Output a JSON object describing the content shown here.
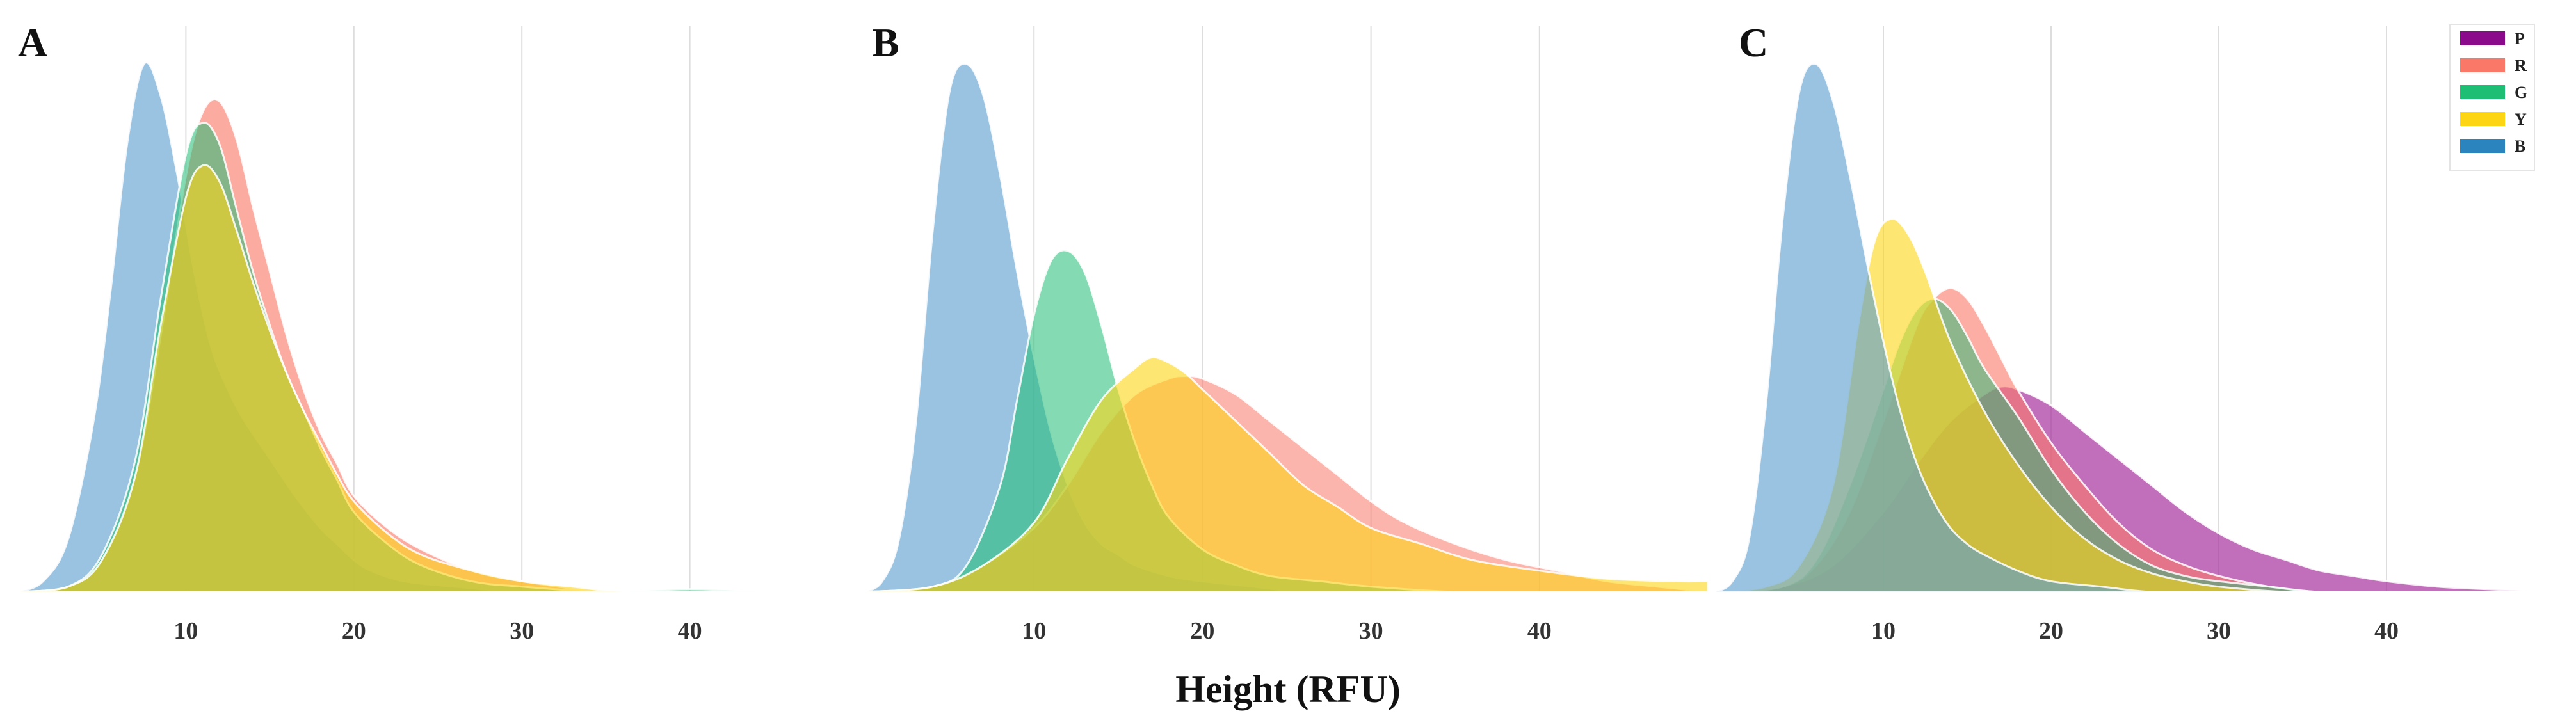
{
  "chart_data": {
    "type": "area",
    "xlabel": "Height (RFU)",
    "ylabel": "",
    "xlim": [
      0,
      50
    ],
    "xticks": [
      10,
      20,
      30,
      40
    ],
    "grid": true,
    "legend": {
      "placement": "top-right",
      "entries": [
        {
          "name": "P",
          "color": "#8B0A8B"
        },
        {
          "name": "R",
          "color": "#FA7867"
        },
        {
          "name": "G",
          "color": "#1FBE75"
        },
        {
          "name": "Y",
          "color": "#FDD515"
        },
        {
          "name": "B",
          "color": "#2C84BE"
        }
      ]
    },
    "panels": [
      {
        "label": "A",
        "series": [
          {
            "name": "B",
            "color": "#5A9ECD",
            "opacity": 0.62,
            "x": [
              0,
              1.5,
              3,
              4.5,
              5.5,
              6.5,
              7.5,
              8.5,
              9.5,
              10.5,
              11.5,
              12.5,
              13.5,
              15,
              16.5,
              18,
              19,
              20,
              21,
              23,
              26,
              30,
              35,
              40,
              45,
              50
            ],
            "y": [
              0.0,
              0.02,
              0.1,
              0.32,
              0.56,
              0.84,
              0.99,
              0.93,
              0.78,
              0.6,
              0.46,
              0.38,
              0.32,
              0.25,
              0.18,
              0.12,
              0.09,
              0.06,
              0.04,
              0.02,
              0.01,
              0.0,
              0.0,
              0.0,
              0.0,
              0.0
            ]
          },
          {
            "name": "R",
            "color": "#FA7867",
            "opacity": 0.62,
            "x": [
              0,
              3,
              5,
              7,
              8.5,
              10,
              11,
              12,
              13,
              14,
              15,
              16,
              17,
              18,
              19,
              20,
              22,
              24,
              27,
              30,
              35,
              40,
              45,
              50
            ],
            "y": [
              0.0,
              0.01,
              0.06,
              0.22,
              0.48,
              0.78,
              0.9,
              0.92,
              0.85,
              0.72,
              0.6,
              0.48,
              0.38,
              0.3,
              0.24,
              0.18,
              0.12,
              0.08,
              0.04,
              0.02,
              0.0,
              0.0,
              0.0,
              0.0
            ]
          },
          {
            "name": "G",
            "color": "#1FBE75",
            "opacity": 0.55,
            "x": [
              0,
              3,
              5,
              7,
              8.5,
              10,
              11,
              12,
              13,
              14,
              15,
              16,
              17,
              18,
              19,
              20,
              22,
              24,
              27,
              30,
              35,
              40,
              45,
              50
            ],
            "y": [
              0.0,
              0.01,
              0.07,
              0.25,
              0.55,
              0.82,
              0.88,
              0.84,
              0.72,
              0.6,
              0.5,
              0.41,
              0.34,
              0.27,
              0.21,
              0.15,
              0.09,
              0.05,
              0.02,
              0.01,
              0.0,
              0.005,
              0.0,
              0.0
            ]
          },
          {
            "name": "Y",
            "color": "#FDD515",
            "opacity": 0.6,
            "x": [
              0,
              3,
              5,
              7,
              8.5,
              10,
              11,
              12,
              13,
              14,
              15,
              16,
              17,
              18,
              19,
              20,
              22,
              24,
              27,
              30,
              33,
              36,
              40,
              45,
              50
            ],
            "y": [
              0.0,
              0.01,
              0.06,
              0.22,
              0.5,
              0.74,
              0.8,
              0.77,
              0.68,
              0.58,
              0.49,
              0.41,
              0.34,
              0.28,
              0.22,
              0.17,
              0.11,
              0.07,
              0.04,
              0.02,
              0.01,
              0.0,
              0.0,
              0.0,
              0.0
            ]
          }
        ]
      },
      {
        "label": "B",
        "series": [
          {
            "name": "B",
            "color": "#5A9ECD",
            "opacity": 0.62,
            "x": [
              0,
              1,
              2,
              3,
              4,
              5,
              6,
              7,
              8,
              9,
              10,
              11,
              12,
              13,
              14,
              15,
              16,
              18,
              20,
              23,
              26,
              30,
              35,
              40,
              45,
              50
            ],
            "y": [
              0.0,
              0.02,
              0.1,
              0.32,
              0.68,
              0.94,
              0.99,
              0.93,
              0.78,
              0.6,
              0.44,
              0.3,
              0.2,
              0.13,
              0.09,
              0.07,
              0.05,
              0.03,
              0.02,
              0.01,
              0.0,
              0.0,
              0.0,
              0.0,
              0.0,
              0.0
            ]
          },
          {
            "name": "R",
            "color": "#FA7867",
            "opacity": 0.55,
            "x": [
              0,
              4,
              7,
              10,
              12,
              14,
              16,
              18,
              19,
              20,
              22,
              24,
              26,
              28,
              30,
              32,
              35,
              38,
              41,
              44,
              47,
              50
            ],
            "y": [
              0.0,
              0.01,
              0.05,
              0.12,
              0.2,
              0.3,
              0.37,
              0.4,
              0.405,
              0.4,
              0.37,
              0.32,
              0.27,
              0.22,
              0.17,
              0.13,
              0.09,
              0.06,
              0.04,
              0.02,
              0.01,
              0.0
            ]
          },
          {
            "name": "G",
            "color": "#1FBE75",
            "opacity": 0.55,
            "x": [
              0,
              4,
              6,
              8,
              9,
              10,
              11,
              12,
              13,
              14,
              15,
              16,
              17,
              18,
              20,
              22,
              24,
              27,
              30,
              35,
              40,
              45,
              50
            ],
            "y": [
              0.0,
              0.01,
              0.05,
              0.2,
              0.36,
              0.52,
              0.62,
              0.64,
              0.6,
              0.5,
              0.38,
              0.28,
              0.2,
              0.14,
              0.08,
              0.05,
              0.03,
              0.02,
              0.01,
              0.0,
              0.0,
              0.0,
              0.0
            ]
          },
          {
            "name": "Y",
            "color": "#FDD515",
            "opacity": 0.6,
            "x": [
              0,
              4,
              7,
              10,
              12,
              14,
              16,
              17,
              18,
              19,
              20,
              22,
              24,
              26,
              28,
              30,
              33,
              36,
              40,
              44,
              48,
              50
            ],
            "y": [
              0.0,
              0.01,
              0.05,
              0.13,
              0.25,
              0.36,
              0.42,
              0.44,
              0.43,
              0.41,
              0.38,
              0.32,
              0.26,
              0.2,
              0.16,
              0.12,
              0.09,
              0.06,
              0.04,
              0.025,
              0.02,
              0.02
            ]
          }
        ]
      },
      {
        "label": "C",
        "series": [
          {
            "name": "P",
            "color": "#A8329E",
            "opacity": 0.7,
            "x": [
              0,
              4,
              7,
              10,
              12,
              14,
              16,
              17,
              18,
              20,
              22,
              24,
              26,
              28,
              30,
              32,
              34,
              36,
              38,
              40,
              43,
              46,
              50
            ],
            "y": [
              0.0,
              0.01,
              0.05,
              0.15,
              0.24,
              0.32,
              0.37,
              0.385,
              0.38,
              0.35,
              0.3,
              0.25,
              0.2,
              0.15,
              0.11,
              0.08,
              0.06,
              0.04,
              0.03,
              0.02,
              0.01,
              0.005,
              0.0
            ]
          },
          {
            "name": "R",
            "color": "#FA7867",
            "opacity": 0.6,
            "x": [
              0,
              4,
              6,
              8,
              10,
              12,
              13,
              14,
              15,
              16,
              17,
              18,
              20,
              22,
              24,
              26,
              28,
              30,
              33,
              36,
              40,
              45,
              50
            ],
            "y": [
              0.0,
              0.01,
              0.05,
              0.15,
              0.32,
              0.5,
              0.55,
              0.57,
              0.55,
              0.5,
              0.44,
              0.38,
              0.28,
              0.2,
              0.13,
              0.08,
              0.05,
              0.03,
              0.01,
              0.0,
              0.0,
              0.0,
              0.0
            ]
          },
          {
            "name": "G",
            "color": "#1FBE75",
            "opacity": 0.5,
            "x": [
              0,
              4,
              6,
              8,
              10,
              11,
              12,
              13,
              14,
              15,
              16,
              18,
              20,
              22,
              24,
              26,
              28,
              30,
              33,
              36,
              40,
              45,
              50
            ],
            "y": [
              0.0,
              0.01,
              0.06,
              0.2,
              0.38,
              0.47,
              0.53,
              0.55,
              0.53,
              0.48,
              0.42,
              0.33,
              0.23,
              0.15,
              0.09,
              0.05,
              0.03,
              0.02,
              0.01,
              0.0,
              0.0,
              0.0,
              0.0
            ]
          },
          {
            "name": "Y",
            "color": "#FDD515",
            "opacity": 0.6,
            "x": [
              0,
              3,
              5,
              7,
              8.5,
              9.5,
              10.5,
              11.5,
              12.5,
              14,
              16,
              18,
              20,
              22,
              24,
              26,
              28,
              30,
              34,
              38,
              42,
              46,
              50
            ],
            "y": [
              0.0,
              0.01,
              0.05,
              0.2,
              0.5,
              0.66,
              0.7,
              0.67,
              0.6,
              0.47,
              0.34,
              0.24,
              0.16,
              0.1,
              0.06,
              0.035,
              0.02,
              0.01,
              0.0,
              0.0,
              0.0,
              0.0,
              0.0
            ]
          },
          {
            "name": "B",
            "color": "#5A9ECD",
            "opacity": 0.62,
            "x": [
              0,
              1,
              2,
              3,
              4,
              5,
              6,
              7,
              8,
              9,
              10,
              11,
              12,
              13,
              14,
              15,
              16,
              18,
              20,
              23,
              26,
              30,
              35,
              40,
              45,
              50
            ],
            "y": [
              0.0,
              0.02,
              0.1,
              0.35,
              0.7,
              0.94,
              0.99,
              0.92,
              0.78,
              0.62,
              0.47,
              0.34,
              0.24,
              0.17,
              0.12,
              0.09,
              0.07,
              0.04,
              0.02,
              0.01,
              0.0,
              0.0,
              0.0,
              0.0,
              0.0,
              0.0
            ]
          }
        ]
      }
    ]
  }
}
